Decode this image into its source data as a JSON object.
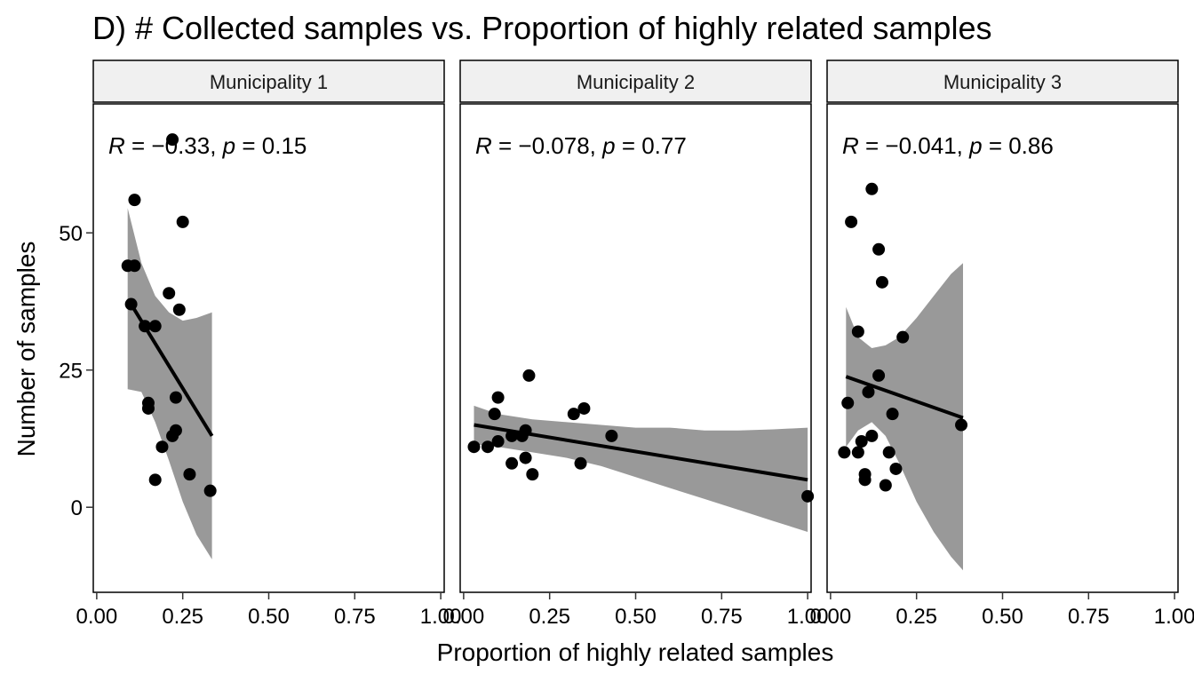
{
  "chart_data": {
    "type": "scatter",
    "title": "D) # Collected samples vs. Proportion of highly related samples",
    "xlabel": "Proportion of highly related samples",
    "ylabel": "Number of samples",
    "xlim": [
      -0.01,
      1.01
    ],
    "ylim": [
      -15.5,
      73.5
    ],
    "x_ticks": [
      0.0,
      0.25,
      0.5,
      0.75,
      1.0
    ],
    "x_tick_labels": [
      "0.00",
      "0.25",
      "0.50",
      "0.75",
      "1.00"
    ],
    "y_ticks": [
      0,
      25,
      50
    ],
    "y_tick_labels": [
      "0",
      "25",
      "50"
    ],
    "grid": false,
    "colors": {
      "points": "#000000",
      "fit_line": "#000000",
      "ribbon": "#999999",
      "strip": "#f0f0f0"
    },
    "panels": [
      {
        "label": "Municipality 1",
        "stats": {
          "R": "−0.33",
          "p": "0.15"
        },
        "points": [
          {
            "x": 0.09,
            "y": 44
          },
          {
            "x": 0.11,
            "y": 44
          },
          {
            "x": 0.1,
            "y": 37
          },
          {
            "x": 0.11,
            "y": 56
          },
          {
            "x": 0.14,
            "y": 33
          },
          {
            "x": 0.17,
            "y": 33
          },
          {
            "x": 0.15,
            "y": 19
          },
          {
            "x": 0.15,
            "y": 18
          },
          {
            "x": 0.17,
            "y": 5
          },
          {
            "x": 0.19,
            "y": 11
          },
          {
            "x": 0.21,
            "y": 39
          },
          {
            "x": 0.22,
            "y": 67
          },
          {
            "x": 0.22,
            "y": 13
          },
          {
            "x": 0.23,
            "y": 14
          },
          {
            "x": 0.23,
            "y": 20
          },
          {
            "x": 0.24,
            "y": 36
          },
          {
            "x": 0.25,
            "y": 52
          },
          {
            "x": 0.27,
            "y": 6
          },
          {
            "x": 0.33,
            "y": 3
          }
        ],
        "fit": {
          "x": [
            0.095,
            0.335
          ],
          "y": [
            37.5,
            13.0
          ]
        },
        "ribbon": {
          "x": [
            0.09,
            0.13,
            0.17,
            0.21,
            0.25,
            0.29,
            0.335
          ],
          "lower": [
            21.5,
            21.0,
            15.5,
            8.5,
            1.0,
            -5.0,
            -9.5
          ],
          "upper": [
            54.5,
            44.5,
            38.5,
            35.5,
            34.0,
            34.5,
            35.5
          ]
        },
        "annotations": [
          "R",
          " = ",
          "−0.33",
          ", ",
          "p",
          " = 0.15"
        ]
      },
      {
        "label": "Municipality 2",
        "stats": {
          "R": "−0.078",
          "p": "0.77"
        },
        "points": [
          {
            "x": 0.03,
            "y": 11
          },
          {
            "x": 0.07,
            "y": 11
          },
          {
            "x": 0.09,
            "y": 17
          },
          {
            "x": 0.1,
            "y": 20
          },
          {
            "x": 0.1,
            "y": 12
          },
          {
            "x": 0.14,
            "y": 8
          },
          {
            "x": 0.14,
            "y": 13
          },
          {
            "x": 0.17,
            "y": 13
          },
          {
            "x": 0.18,
            "y": 9
          },
          {
            "x": 0.18,
            "y": 14
          },
          {
            "x": 0.19,
            "y": 24
          },
          {
            "x": 0.2,
            "y": 6
          },
          {
            "x": 0.32,
            "y": 17
          },
          {
            "x": 0.34,
            "y": 8
          },
          {
            "x": 0.35,
            "y": 18
          },
          {
            "x": 0.43,
            "y": 13
          },
          {
            "x": 1.0,
            "y": 2
          }
        ],
        "fit": {
          "x": [
            0.03,
            1.0
          ],
          "y": [
            15.0,
            5.0
          ]
        },
        "ribbon": {
          "x": [
            0.03,
            0.1,
            0.2,
            0.3,
            0.4,
            0.5,
            0.6,
            0.7,
            0.8,
            0.9,
            1.0
          ],
          "lower": [
            11.5,
            11.0,
            10.0,
            9.0,
            7.5,
            5.5,
            3.5,
            1.5,
            -0.5,
            -2.5,
            -4.5
          ],
          "upper": [
            18.5,
            17.0,
            16.0,
            15.5,
            15.0,
            14.5,
            14.5,
            14.0,
            14.0,
            14.2,
            14.5
          ]
        },
        "annotations": [
          "R",
          " = ",
          "−0.078",
          ", ",
          "p",
          " = 0.77"
        ]
      },
      {
        "label": "Municipality 3",
        "stats": {
          "R": "−0.041",
          "p": "0.86"
        },
        "points": [
          {
            "x": 0.04,
            "y": 10
          },
          {
            "x": 0.05,
            "y": 19
          },
          {
            "x": 0.06,
            "y": 52
          },
          {
            "x": 0.08,
            "y": 32
          },
          {
            "x": 0.08,
            "y": 10
          },
          {
            "x": 0.09,
            "y": 12
          },
          {
            "x": 0.1,
            "y": 6
          },
          {
            "x": 0.1,
            "y": 5
          },
          {
            "x": 0.11,
            "y": 21
          },
          {
            "x": 0.12,
            "y": 58
          },
          {
            "x": 0.12,
            "y": 13
          },
          {
            "x": 0.14,
            "y": 47
          },
          {
            "x": 0.14,
            "y": 24
          },
          {
            "x": 0.15,
            "y": 41
          },
          {
            "x": 0.16,
            "y": 4
          },
          {
            "x": 0.17,
            "y": 10
          },
          {
            "x": 0.18,
            "y": 17
          },
          {
            "x": 0.19,
            "y": 7
          },
          {
            "x": 0.21,
            "y": 31
          },
          {
            "x": 0.38,
            "y": 15
          }
        ],
        "fit": {
          "x": [
            0.045,
            0.385
          ],
          "y": [
            23.8,
            16.3
          ]
        },
        "ribbon": {
          "x": [
            0.045,
            0.08,
            0.12,
            0.16,
            0.2,
            0.25,
            0.3,
            0.35,
            0.385
          ],
          "lower": [
            11.0,
            14.0,
            15.5,
            13.0,
            8.0,
            1.0,
            -4.5,
            -9.0,
            -11.5
          ],
          "upper": [
            36.5,
            31.0,
            29.0,
            29.5,
            31.0,
            34.5,
            38.5,
            42.5,
            44.5
          ]
        },
        "annotations": [
          "R",
          " = ",
          "−0.041",
          ", ",
          "p",
          " = 0.86"
        ]
      }
    ]
  }
}
